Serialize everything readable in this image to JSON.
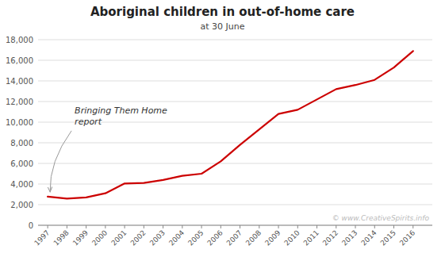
{
  "chart_data": {
    "type": "line",
    "title": "Aboriginal children in out-of-home care",
    "subtitle": "at 30 June",
    "x": [
      1997,
      1998,
      1999,
      2000,
      2001,
      2002,
      2003,
      2004,
      2005,
      2006,
      2007,
      2008,
      2009,
      2010,
      2011,
      2012,
      2013,
      2014,
      2015,
      2016
    ],
    "values": [
      2780,
      2580,
      2700,
      3100,
      4050,
      4100,
      4400,
      4800,
      5000,
      6200,
      7800,
      9300,
      10800,
      11200,
      12200,
      13200,
      13600,
      14100,
      15300,
      16900
    ],
    "color": "#cc0000",
    "xlim": [
      1996.5,
      2017.0
    ],
    "xticks": [
      1997,
      1998,
      1999,
      2000,
      2001,
      2002,
      2003,
      2004,
      2005,
      2006,
      2007,
      2008,
      2009,
      2010,
      2011,
      2012,
      2013,
      2014,
      2015,
      2016
    ],
    "ylim": [
      0,
      18000
    ],
    "yticks": [
      0,
      {
        "value": 2000,
        "label": "2,000"
      },
      {
        "value": 4000,
        "label": "4,000"
      },
      {
        "value": 6000,
        "label": "6,000"
      },
      {
        "value": 8000,
        "label": "8,000"
      },
      {
        "value": 10000,
        "label": "10,000"
      },
      {
        "value": 12000,
        "label": "12,000"
      },
      {
        "value": 14000,
        "label": "14,000"
      },
      {
        "value": 16000,
        "label": "16,000"
      },
      {
        "value": 18000,
        "label": "18,000"
      }
    ],
    "grid": true,
    "annotations": [
      {
        "text": "Bringing Them Home\nreport",
        "x": 1997,
        "y": 2780
      },
      {
        "text": "© www.CreativeSpirits.info"
      }
    ]
  }
}
